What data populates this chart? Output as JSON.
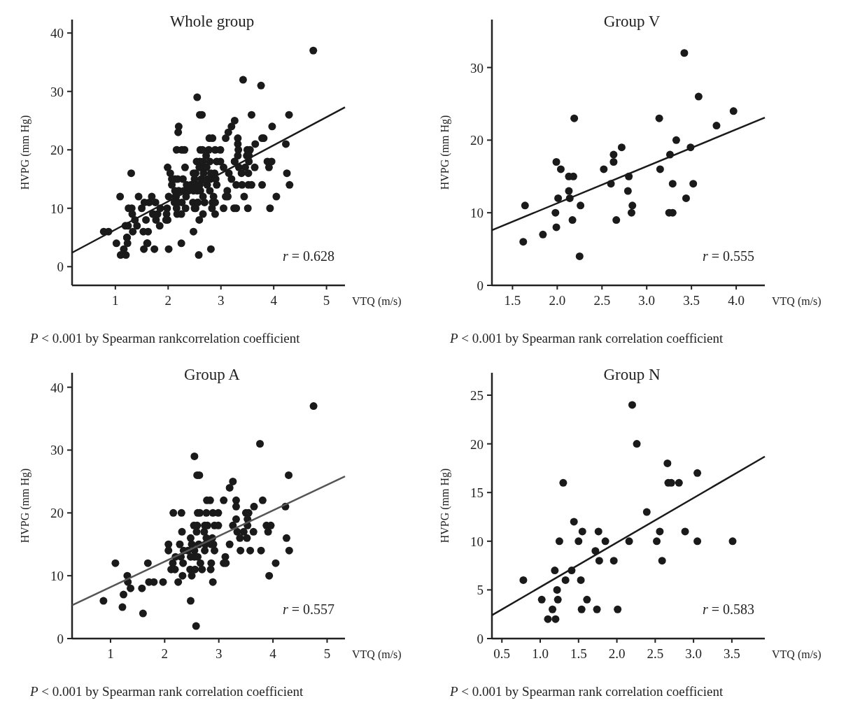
{
  "chart_data": [
    {
      "type": "scatter",
      "title": "Whole group",
      "xlabel": "VTQ (m/s)",
      "ylabel": "HVPG (mm Hg)",
      "xlim": [
        0.18,
        5.35
      ],
      "ylim": [
        -3.2,
        42.3
      ],
      "xticks": [
        1,
        2,
        3,
        4,
        5
      ],
      "yticks": [
        0,
        10,
        20,
        30,
        40
      ],
      "grid": false,
      "annotations": [
        "r = 0.628",
        "P < 0.001 by Spearman rankcorrelation coefficient"
      ],
      "series": [
        {
          "marker": "circle",
          "color": "#1a1a1a",
          "x": [
            1.64,
            1.62,
            1.84,
            1.99,
            2.04,
            2.01,
            1.98,
            1.99,
            2.13,
            2.18,
            2.13,
            2.14,
            2.19,
            2.26,
            2.17,
            2.25,
            2.52,
            2.63,
            2.72,
            2.6,
            2.79,
            2.8,
            2.84,
            2.83,
            2.66,
            3.14,
            3.15,
            3.26,
            3.33,
            3.42,
            3.49,
            3.58,
            3.29,
            3.25,
            3.29,
            3.44,
            3.52,
            3.78,
            3.97,
            0.87,
            1.09,
            1.22,
            1.24,
            1.31,
            1.32,
            1.37,
            1.58,
            1.6,
            1.69,
            1.71,
            1.8,
            1.97,
            2.07,
            2.07,
            2.16,
            2.31,
            2.15,
            2.12,
            2.19,
            2.2,
            2.25,
            2.28,
            2.32,
            2.3,
            2.34,
            2.33,
            2.35,
            2.43,
            2.48,
            2.5,
            2.48,
            2.47,
            2.5,
            2.48,
            2.55,
            2.6,
            2.64,
            2.54,
            2.6,
            2.61,
            2.65,
            2.59,
            2.63,
            2.55,
            2.55,
            2.61,
            2.56,
            2.66,
            2.69,
            2.58,
            2.73,
            2.79,
            2.77,
            2.78,
            2.84,
            2.75,
            2.74,
            2.88,
            2.9,
            2.89,
            2.99,
            2.92,
            2.99,
            2.86,
            2.89,
            2.92,
            3.09,
            3.12,
            3.09,
            3.13,
            3.2,
            3.2,
            3.26,
            3.26,
            3.32,
            3.32,
            3.32,
            3.34,
            3.39,
            3.4,
            3.46,
            3.5,
            3.55,
            3.53,
            3.53,
            3.52,
            3.58,
            3.65,
            3.64,
            3.76,
            3.81,
            3.78,
            3.88,
            3.96,
            3.91,
            3.93,
            4.05,
            4.23,
            4.25,
            4.29,
            4.3,
            4.75,
            0.78,
            1.02,
            1.1,
            1.16,
            1.19,
            1.2,
            1.22,
            1.23,
            1.25,
            1.3,
            1.33,
            1.41,
            1.44,
            1.5,
            1.53,
            1.54,
            1.55,
            1.61,
            1.72,
            1.74,
            1.76,
            1.77,
            1.85,
            1.96,
            2.01,
            2.16,
            2.2,
            2.26,
            2.39,
            2.52,
            2.56,
            2.59,
            2.66,
            2.67,
            2.81,
            2.89,
            3.05,
            3.05,
            3.51,
            2.81
          ],
          "values": [
            11,
            6,
            7,
            17,
            16,
            12,
            10,
            8,
            15,
            15,
            13,
            12,
            23,
            11,
            9,
            4,
            16,
            17,
            19,
            14,
            13,
            15,
            11,
            10,
            9,
            23,
            16,
            18,
            20,
            32,
            19,
            26,
            14,
            10,
            10,
            12,
            14,
            22,
            24,
            6,
            12,
            5,
            7,
            10,
            9,
            8,
            8,
            4,
            12,
            9,
            9,
            9,
            15,
            14,
            20,
            20,
            12,
            11,
            11,
            13,
            9,
            15,
            17,
            13,
            12,
            10,
            14,
            14,
            16,
            15,
            13,
            11,
            10,
            6,
            29,
            26,
            26,
            18,
            18,
            20,
            20,
            17,
            15,
            14,
            13,
            13,
            11,
            12,
            11,
            2,
            17,
            18,
            20,
            22,
            22,
            15,
            14,
            16,
            15,
            20,
            20,
            18,
            18,
            12,
            9,
            14,
            22,
            13,
            12,
            12,
            15,
            24,
            25,
            18,
            22,
            21,
            19,
            17,
            16,
            14,
            17,
            20,
            20,
            19,
            18,
            16,
            14,
            21,
            17,
            31,
            22,
            14,
            18,
            18,
            17,
            10,
            12,
            21,
            16,
            26,
            14,
            37,
            6,
            4,
            2,
            3,
            7,
            2,
            5,
            4,
            10,
            16,
            6,
            7,
            12,
            10,
            6,
            3,
            11,
            4,
            9,
            3,
            11,
            8,
            10,
            8,
            3,
            10,
            24,
            20,
            13,
            10,
            11,
            8,
            18,
            16,
            16,
            11,
            17,
            10,
            10,
            3
          ]
        },
        {
          "type": "line",
          "marker": "none",
          "color": "#1a1a1a",
          "x": [
            0.18,
            5.35
          ],
          "values": [
            2.4,
            27.3
          ]
        }
      ]
    },
    {
      "type": "scatter",
      "title": "Group V",
      "xlabel": "VTQ (m/s)",
      "ylabel": "HVPG (mm Hg)",
      "xlim": [
        1.27,
        4.32
      ],
      "ylim": [
        0,
        36.6
      ],
      "xticks": [
        1.5,
        {
          "value": 2,
          "label": "2.0"
        },
        2.5,
        {
          "value": 3,
          "label": "3.0"
        },
        3.5,
        {
          "value": 4,
          "label": "4.0"
        }
      ],
      "yticks": [
        0,
        10,
        20,
        30
      ],
      "grid": false,
      "annotations": [
        "r = 0.555",
        "P < 0.001 by Spearman rank correlation coefficient"
      ],
      "series": [
        {
          "marker": "circle",
          "color": "#1a1a1a",
          "x": [
            1.64,
            1.62,
            1.84,
            1.99,
            2.04,
            2.01,
            1.98,
            1.99,
            2.13,
            2.18,
            2.13,
            2.14,
            2.19,
            2.26,
            2.17,
            2.25,
            2.52,
            2.63,
            2.63,
            2.72,
            2.6,
            2.79,
            2.8,
            2.84,
            2.83,
            2.66,
            3.14,
            3.15,
            3.26,
            3.33,
            3.42,
            3.49,
            3.58,
            3.29,
            3.25,
            3.29,
            3.44,
            3.52,
            3.78,
            3.97
          ],
          "values": [
            11,
            6,
            7,
            17,
            16,
            12,
            10,
            8,
            15,
            15,
            13,
            12,
            23,
            11,
            9,
            4,
            16,
            18,
            17,
            19,
            14,
            13,
            15,
            11,
            10,
            9,
            23,
            16,
            18,
            20,
            32,
            19,
            26,
            14,
            10,
            10,
            12,
            14,
            22,
            24
          ]
        },
        {
          "type": "line",
          "marker": "none",
          "color": "#1a1a1a",
          "x": [
            1.27,
            4.32
          ],
          "values": [
            7.6,
            23.1
          ]
        }
      ]
    },
    {
      "type": "scatter",
      "title": "Group A",
      "xlabel": "VTQ (m/s)",
      "ylabel": "HVPG (mm Hg)",
      "xlim": [
        0.29,
        5.33
      ],
      "ylim": [
        0,
        42.3
      ],
      "xticks": [
        1,
        2,
        3,
        4,
        5
      ],
      "yticks": [
        0,
        10,
        20,
        30,
        40
      ],
      "grid": false,
      "annotations": [
        "r = 0.557",
        "P < 0.001 by Spearman rank correlation coefficient"
      ],
      "series": [
        {
          "marker": "circle",
          "color": "#1a1a1a",
          "x": [
            0.87,
            1.09,
            1.22,
            1.24,
            1.31,
            1.32,
            1.37,
            1.58,
            1.6,
            1.69,
            1.71,
            1.8,
            1.97,
            2.07,
            2.07,
            2.16,
            2.31,
            2.15,
            2.12,
            2.19,
            2.2,
            2.25,
            2.28,
            2.32,
            2.3,
            2.34,
            2.33,
            2.35,
            2.43,
            2.48,
            2.5,
            2.48,
            2.47,
            2.5,
            2.48,
            2.55,
            2.6,
            2.64,
            2.54,
            2.6,
            2.61,
            2.65,
            2.59,
            2.63,
            2.55,
            2.55,
            2.61,
            2.56,
            2.66,
            2.69,
            2.58,
            2.73,
            2.74,
            2.79,
            2.77,
            2.78,
            2.84,
            2.77,
            2.75,
            2.74,
            2.88,
            2.86,
            2.9,
            2.89,
            2.99,
            2.92,
            2.99,
            2.86,
            2.85,
            2.89,
            2.92,
            3.09,
            3.12,
            3.09,
            3.13,
            3.2,
            3.2,
            3.26,
            3.26,
            3.32,
            3.32,
            3.32,
            3.34,
            3.39,
            3.4,
            3.46,
            3.5,
            3.55,
            3.53,
            3.53,
            3.52,
            3.58,
            3.65,
            3.64,
            3.76,
            3.81,
            3.78,
            3.88,
            3.96,
            3.91,
            3.93,
            4.05,
            4.23,
            4.25,
            4.29,
            4.3,
            4.75
          ],
          "values": [
            6,
            12,
            5,
            7,
            10,
            9,
            8,
            8,
            4,
            12,
            9,
            9,
            9,
            15,
            14,
            20,
            20,
            12,
            11,
            11,
            13,
            9,
            15,
            17,
            13,
            12,
            10,
            14,
            14,
            16,
            15,
            13,
            11,
            10,
            6,
            29,
            26,
            26,
            18,
            18,
            20,
            20,
            17,
            15,
            14,
            13,
            13,
            11,
            12,
            11,
            2,
            17,
            18,
            18,
            20,
            22,
            22,
            16,
            15,
            14,
            16,
            15,
            15,
            20,
            20,
            18,
            18,
            12,
            11,
            9,
            14,
            22,
            13,
            12,
            12,
            15,
            24,
            25,
            18,
            22,
            21,
            19,
            17,
            16,
            14,
            17,
            20,
            20,
            19,
            18,
            16,
            14,
            21,
            17,
            31,
            22,
            14,
            18,
            18,
            17,
            10,
            12,
            21,
            16,
            26,
            14,
            37
          ]
        },
        {
          "type": "line",
          "marker": "none",
          "color": "#555555",
          "x": [
            0.29,
            5.33
          ],
          "values": [
            5.3,
            25.8
          ]
        }
      ]
    },
    {
      "type": "scatter",
      "title": "Group N",
      "xlabel": "VTQ (m/s)",
      "ylabel": "HVPG (mm Hg)",
      "xlim": [
        0.37,
        3.93
      ],
      "ylim": [
        0,
        27.3
      ],
      "xticks": [
        0.5,
        {
          "value": 1,
          "label": "1.0"
        },
        1.5,
        {
          "value": 2,
          "label": "2.0"
        },
        2.5,
        {
          "value": 3,
          "label": "3.0"
        },
        3.5
      ],
      "yticks": [
        0,
        5,
        10,
        15,
        20,
        25
      ],
      "grid": false,
      "annotations": [
        "r = 0.583",
        "P < 0.001 by Spearman rank correlation coefficient"
      ],
      "series": [
        {
          "marker": "circle",
          "color": "#1a1a1a",
          "x": [
            0.78,
            1.02,
            1.1,
            1.16,
            1.19,
            1.2,
            1.22,
            1.23,
            1.25,
            1.3,
            1.33,
            1.41,
            1.44,
            1.5,
            1.53,
            1.54,
            1.55,
            1.61,
            1.72,
            1.74,
            1.76,
            1.77,
            1.85,
            1.96,
            2.01,
            2.16,
            2.2,
            2.26,
            2.39,
            2.52,
            2.56,
            2.59,
            2.66,
            2.67,
            2.71,
            2.81,
            2.89,
            3.05,
            3.05,
            3.51
          ],
          "values": [
            6,
            4,
            2,
            3,
            7,
            2,
            5,
            4,
            10,
            16,
            6,
            7,
            12,
            10,
            6,
            3,
            11,
            4,
            9,
            3,
            11,
            8,
            10,
            8,
            3,
            10,
            24,
            20,
            13,
            10,
            11,
            8,
            18,
            16,
            16,
            16,
            11,
            17,
            10,
            10
          ]
        },
        {
          "type": "line",
          "marker": "none",
          "color": "#1a1a1a",
          "x": [
            0.37,
            3.93
          ],
          "values": [
            2.4,
            18.7
          ]
        }
      ]
    }
  ]
}
